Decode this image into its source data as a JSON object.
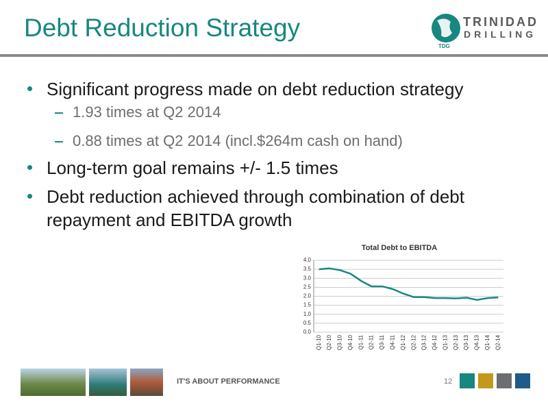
{
  "header": {
    "title": "Debt Reduction Strategy",
    "logo": {
      "name": "TRINIDAD",
      "subname": "DRILLING",
      "abbr": "TDG"
    }
  },
  "bullets": [
    {
      "text": "Significant progress made on debt reduction strategy",
      "sub": [
        "1.93 times at Q2 2014",
        "0.88 times at Q2 2014 (incl.$264m cash on hand)"
      ]
    },
    {
      "text": "Long-term goal remains +/- 1.5 times"
    },
    {
      "text": "Debt reduction achieved through combination of debt repayment and EBITDA growth"
    }
  ],
  "chart_data": {
    "type": "line",
    "title": "Total Debt to EBITDA",
    "categories": [
      "Q1-10",
      "Q2-10",
      "Q3-10",
      "Q4-10",
      "Q1-11",
      "Q2-11",
      "Q3-11",
      "Q4-11",
      "Q1-12",
      "Q2-12",
      "Q3-12",
      "Q4-12",
      "Q1-13",
      "Q2-13",
      "Q3-13",
      "Q4-13",
      "Q1-14",
      "Q2-14"
    ],
    "values": [
      3.5,
      3.55,
      3.45,
      3.25,
      2.85,
      2.55,
      2.55,
      2.4,
      2.15,
      1.95,
      1.95,
      1.9,
      1.9,
      1.88,
      1.92,
      1.8,
      1.9,
      1.93
    ],
    "color": "#17877f",
    "ylim": [
      0,
      4
    ],
    "yticks": [
      {
        "value": 0,
        "label": "0.0"
      },
      0.5,
      {
        "value": 1,
        "label": "1.0"
      },
      1.5,
      {
        "value": 2,
        "label": "2.0"
      },
      2.5,
      {
        "value": 3,
        "label": "3.0"
      },
      3.5,
      {
        "value": 4,
        "label": "4.0"
      }
    ],
    "grid": true
  },
  "footer": {
    "tagline": "IT'S ABOUT PERFORMANCE",
    "page": "12"
  }
}
